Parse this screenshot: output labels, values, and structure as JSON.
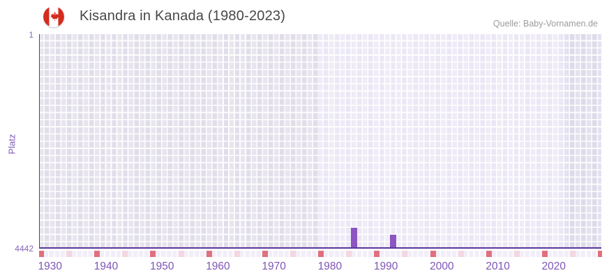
{
  "header": {
    "title": "Kisandra in Kanada (1980-2023)",
    "source": "Quelle: Baby-Vornamen.de",
    "flag_icon": "canada-flag-icon"
  },
  "y_axis": {
    "label": "Platz",
    "top_tick": "1",
    "bottom_tick": "4442"
  },
  "x_axis": {
    "tick_labels": [
      "1930",
      "1940",
      "1950",
      "1960",
      "1970",
      "1980",
      "1990",
      "2000",
      "2010",
      "2020"
    ]
  },
  "chart_data": {
    "type": "bar",
    "title": "Kisandra in Kanada (1980-2023)",
    "xlabel": "",
    "ylabel": "Platz",
    "y_inverted": true,
    "ylim": [
      1,
      4442
    ],
    "x_range": [
      1930,
      2030
    ],
    "x_ticks": [
      1930,
      1940,
      1950,
      1960,
      1970,
      1980,
      1990,
      2000,
      2010,
      2020
    ],
    "highlight_year_range": [
      1980,
      2023
    ],
    "grid": true,
    "legend": false,
    "series": [
      {
        "name": "Platz",
        "points": [
          {
            "year": 1986,
            "platz": 4011
          },
          {
            "year": 1993,
            "platz": 4155
          }
        ]
      }
    ],
    "axis_markers": {
      "decade_years": [
        1930,
        1940,
        1950,
        1960,
        1970,
        1980,
        1990,
        2000,
        2010,
        2020,
        2030
      ],
      "halfdecade_years": [
        1935,
        1945,
        1955,
        1965,
        1975,
        1985,
        1995,
        2005,
        2015,
        2025
      ]
    }
  },
  "colors": {
    "bar": "#8c55c2",
    "axis_line": "#5a3597",
    "x_label": "#7e55b5",
    "y_tick": "#8565b5",
    "cell_light": "#ebe7f5",
    "cell_dim": "#e1deea",
    "marker_decade": "#e0707e",
    "marker_mid": "#f3d7e1",
    "title_text": "#474747",
    "source_text": "#9b9b9b"
  }
}
